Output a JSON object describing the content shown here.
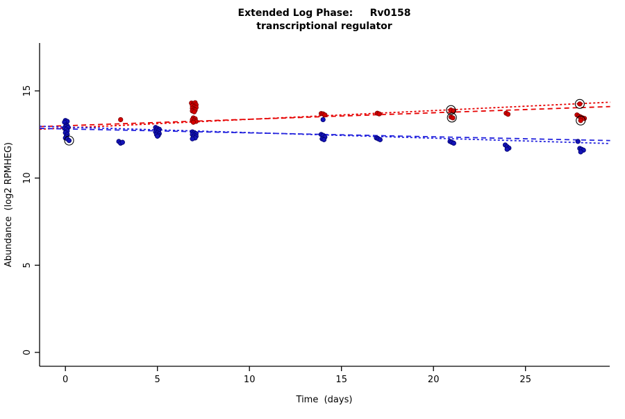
{
  "chart_data": {
    "type": "scatter",
    "title": "Extended Log Phase:     Rv0158",
    "subtitle": "transcriptional regulator",
    "xlabel": "Time  (days)",
    "ylabel": "Abundance  (log2 RPMHEG)",
    "xlim": [
      -1.4,
      29.6
    ],
    "ylim": [
      -0.8,
      17.7
    ],
    "xticks": [
      0,
      5,
      10,
      15,
      20,
      25
    ],
    "yticks": [
      0,
      5,
      10,
      15
    ],
    "grid": false,
    "legend": "none",
    "series": [
      {
        "name": "condition-red",
        "color": "#d40000",
        "edge": "#7a0000",
        "points": [
          [
            0.0,
            12.9
          ],
          [
            0.1,
            12.85
          ],
          [
            3.0,
            13.35
          ],
          [
            6.85,
            14.3
          ],
          [
            6.95,
            14.25
          ],
          [
            7.05,
            14.32
          ],
          [
            7.1,
            14.2
          ],
          [
            6.9,
            14.15
          ],
          [
            7.0,
            14.1
          ],
          [
            7.1,
            14.05
          ],
          [
            6.9,
            14.0
          ],
          [
            7.0,
            13.95
          ],
          [
            7.05,
            13.9
          ],
          [
            6.9,
            13.85
          ],
          [
            7.0,
            13.8
          ],
          [
            6.95,
            13.45
          ],
          [
            7.05,
            13.4
          ],
          [
            6.9,
            13.35
          ],
          [
            7.0,
            13.3
          ],
          [
            7.1,
            13.25
          ],
          [
            6.95,
            13.2
          ],
          [
            13.9,
            13.7
          ],
          [
            14.0,
            13.68
          ],
          [
            14.1,
            13.62
          ],
          [
            16.95,
            13.72
          ],
          [
            17.05,
            13.68
          ],
          [
            20.95,
            13.9
          ],
          [
            21.1,
            13.85
          ],
          [
            20.95,
            13.5
          ],
          [
            21.05,
            13.45
          ],
          [
            23.95,
            13.72
          ],
          [
            24.05,
            13.66
          ],
          [
            27.95,
            14.25
          ],
          [
            27.8,
            13.62
          ],
          [
            27.9,
            13.55
          ],
          [
            28.0,
            13.5
          ],
          [
            28.1,
            13.45
          ],
          [
            28.2,
            13.42
          ],
          [
            28.0,
            13.3
          ]
        ]
      },
      {
        "name": "condition-blue",
        "color": "#1414b8",
        "edge": "#00006e",
        "points": [
          [
            0.0,
            13.3
          ],
          [
            0.1,
            13.25
          ],
          [
            -0.05,
            13.2
          ],
          [
            0.05,
            13.05
          ],
          [
            0.1,
            13.0
          ],
          [
            0.0,
            12.95
          ],
          [
            0.15,
            12.9
          ],
          [
            -0.05,
            12.85
          ],
          [
            0.05,
            12.8
          ],
          [
            0.1,
            12.7
          ],
          [
            0.0,
            12.6
          ],
          [
            0.1,
            12.5
          ],
          [
            0.05,
            12.4
          ],
          [
            0.0,
            12.3
          ],
          [
            0.1,
            12.25
          ],
          [
            0.2,
            12.15
          ],
          [
            2.9,
            12.1
          ],
          [
            3.0,
            12.0
          ],
          [
            3.1,
            12.05
          ],
          [
            4.9,
            12.9
          ],
          [
            5.0,
            12.85
          ],
          [
            5.1,
            12.8
          ],
          [
            4.95,
            12.75
          ],
          [
            5.05,
            12.7
          ],
          [
            4.9,
            12.65
          ],
          [
            5.0,
            12.6
          ],
          [
            5.1,
            12.55
          ],
          [
            4.95,
            12.5
          ],
          [
            5.05,
            12.45
          ],
          [
            5.0,
            12.4
          ],
          [
            6.9,
            12.65
          ],
          [
            7.0,
            12.6
          ],
          [
            7.1,
            12.55
          ],
          [
            6.9,
            12.5
          ],
          [
            7.0,
            12.45
          ],
          [
            7.1,
            12.4
          ],
          [
            6.95,
            12.35
          ],
          [
            7.05,
            12.3
          ],
          [
            6.9,
            12.25
          ],
          [
            14.0,
            13.35
          ],
          [
            13.9,
            12.5
          ],
          [
            14.0,
            12.45
          ],
          [
            14.1,
            12.35
          ],
          [
            13.95,
            12.25
          ],
          [
            14.05,
            12.2
          ],
          [
            16.9,
            12.3
          ],
          [
            17.0,
            12.25
          ],
          [
            17.1,
            12.2
          ],
          [
            20.9,
            12.1
          ],
          [
            21.0,
            12.05
          ],
          [
            21.1,
            12.0
          ],
          [
            23.9,
            11.9
          ],
          [
            24.0,
            11.8
          ],
          [
            24.1,
            11.72
          ],
          [
            24.0,
            11.65
          ],
          [
            27.85,
            12.1
          ],
          [
            27.95,
            11.7
          ],
          [
            28.05,
            11.65
          ],
          [
            28.15,
            11.6
          ],
          [
            28.0,
            11.5
          ]
        ]
      }
    ],
    "trend_lines": [
      {
        "series": "condition-red",
        "color": "#e60000",
        "dash": [
          3,
          3
        ],
        "x1": -1.4,
        "y1": 12.8,
        "x2": 29.6,
        "y2": 14.35
      },
      {
        "series": "condition-red",
        "color": "#e60000",
        "dash": [
          7,
          5
        ],
        "x1": -1.4,
        "y1": 12.95,
        "x2": 29.6,
        "y2": 14.1
      },
      {
        "series": "condition-blue",
        "color": "#2222dd",
        "dash": [
          3,
          3
        ],
        "x1": -1.4,
        "y1": 12.97,
        "x2": 29.6,
        "y2": 11.98
      },
      {
        "series": "condition-blue",
        "color": "#2222dd",
        "dash": [
          7,
          5
        ],
        "x1": -1.4,
        "y1": 12.85,
        "x2": 29.6,
        "y2": 12.15
      }
    ],
    "circled_points": [
      [
        0.2,
        12.15
      ],
      [
        20.95,
        13.9
      ],
      [
        21.0,
        13.47
      ],
      [
        27.95,
        14.25
      ],
      [
        28.0,
        13.3
      ]
    ]
  }
}
